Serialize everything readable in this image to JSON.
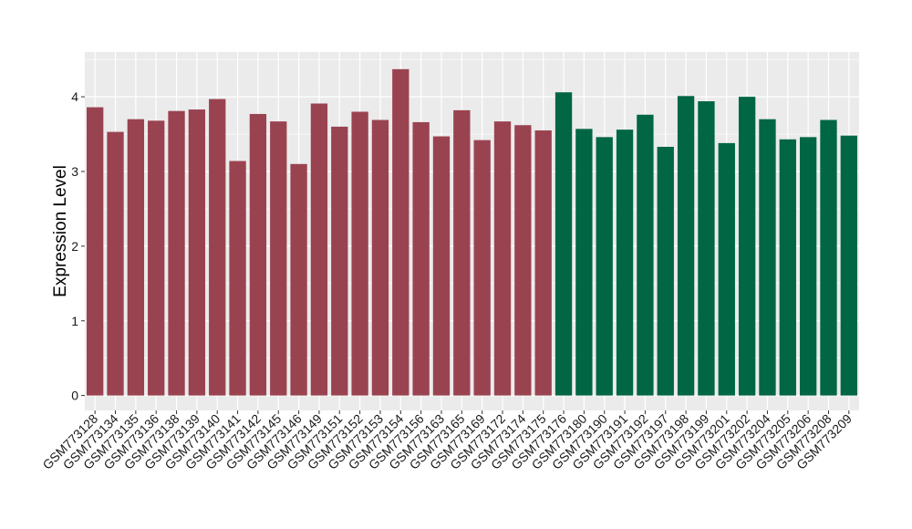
{
  "chart_data": {
    "type": "bar",
    "title": "",
    "xlabel": "",
    "ylabel": "Expression Level",
    "ylim": [
      -0.2,
      4.6
    ],
    "yticks": [
      0,
      1,
      2,
      3,
      4
    ],
    "grid": true,
    "legend": "none",
    "colors": {
      "group1": "#9a4350",
      "group2": "#006644",
      "panel": "#ebebeb",
      "gridline": "#ffffff"
    },
    "categories": [
      "GSM773128",
      "GSM773134",
      "GSM773135",
      "GSM773136",
      "GSM773138",
      "GSM773139",
      "GSM773140",
      "GSM773141",
      "GSM773142",
      "GSM773145",
      "GSM773146",
      "GSM773149",
      "GSM773151",
      "GSM773152",
      "GSM773153",
      "GSM773154",
      "GSM773156",
      "GSM773163",
      "GSM773165",
      "GSM773169",
      "GSM773172",
      "GSM773174",
      "GSM773175",
      "GSM773176",
      "GSM773180",
      "GSM773190",
      "GSM773191",
      "GSM773192",
      "GSM773197",
      "GSM773198",
      "GSM773199",
      "GSM773201",
      "GSM773202",
      "GSM773204",
      "GSM773205",
      "GSM773206",
      "GSM773208",
      "GSM773209"
    ],
    "values": [
      3.86,
      3.53,
      3.7,
      3.68,
      3.81,
      3.83,
      3.97,
      3.14,
      3.77,
      3.67,
      3.1,
      3.91,
      3.6,
      3.8,
      3.69,
      4.37,
      3.66,
      3.47,
      3.82,
      3.42,
      3.67,
      3.62,
      3.55,
      4.06,
      3.57,
      3.46,
      3.56,
      3.76,
      3.33,
      4.01,
      3.94,
      3.38,
      4.0,
      3.7,
      3.43,
      3.46,
      3.69,
      3.48
    ],
    "groups": [
      0,
      0,
      0,
      0,
      0,
      0,
      0,
      0,
      0,
      0,
      0,
      0,
      0,
      0,
      0,
      0,
      0,
      0,
      0,
      0,
      0,
      0,
      0,
      1,
      1,
      1,
      1,
      1,
      1,
      1,
      1,
      1,
      1,
      1,
      1,
      1,
      1,
      1
    ]
  }
}
